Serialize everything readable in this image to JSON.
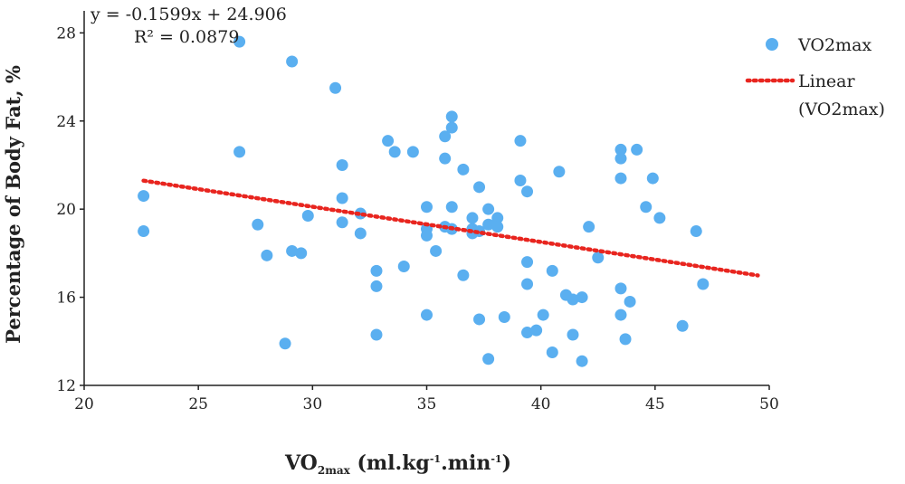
{
  "chart_data": {
    "type": "scatter",
    "title": "",
    "ylabel": "Percentage of Body Fat, %",
    "xlabel": {
      "main": "VO",
      "sub": "2max",
      "units_open": " (ml.kg",
      "sup1": "-1",
      "mid": ".min",
      "sup2": "-1",
      "units_close": ")"
    },
    "xlim": [
      20,
      50
    ],
    "ylim": [
      12,
      29
    ],
    "xticks": [
      20,
      25,
      30,
      35,
      40,
      45,
      50
    ],
    "yticks": [
      12,
      16,
      20,
      24,
      28
    ],
    "grid": false,
    "legend_position": "top-right",
    "equation": "y = -0.1599x + 24.906",
    "r_squared": "R² = 0.0879",
    "colors": {
      "points": "#5aaff0",
      "trendline": "#e8251f"
    },
    "series": [
      {
        "name": "VO2max",
        "points": [
          [
            22.6,
            20.6
          ],
          [
            22.6,
            19.0
          ],
          [
            26.8,
            27.6
          ],
          [
            26.8,
            22.6
          ],
          [
            27.6,
            19.3
          ],
          [
            28.0,
            17.9
          ],
          [
            28.8,
            13.9
          ],
          [
            29.1,
            26.7
          ],
          [
            29.1,
            18.1
          ],
          [
            29.5,
            18.0
          ],
          [
            29.8,
            19.7
          ],
          [
            31.0,
            25.5
          ],
          [
            31.3,
            22.0
          ],
          [
            31.3,
            20.5
          ],
          [
            31.3,
            19.4
          ],
          [
            32.1,
            19.8
          ],
          [
            32.1,
            18.9
          ],
          [
            32.8,
            17.2
          ],
          [
            32.8,
            16.5
          ],
          [
            32.8,
            14.3
          ],
          [
            33.3,
            23.1
          ],
          [
            33.6,
            22.6
          ],
          [
            34.0,
            17.4
          ],
          [
            34.4,
            22.6
          ],
          [
            35.0,
            20.1
          ],
          [
            35.0,
            19.1
          ],
          [
            35.0,
            18.8
          ],
          [
            35.0,
            15.2
          ],
          [
            35.4,
            18.1
          ],
          [
            35.8,
            23.3
          ],
          [
            35.8,
            22.3
          ],
          [
            35.8,
            19.2
          ],
          [
            36.1,
            24.2
          ],
          [
            36.1,
            23.7
          ],
          [
            36.1,
            20.1
          ],
          [
            36.1,
            19.1
          ],
          [
            36.6,
            21.8
          ],
          [
            36.6,
            17.0
          ],
          [
            37.0,
            19.6
          ],
          [
            37.0,
            19.1
          ],
          [
            37.0,
            18.9
          ],
          [
            37.3,
            21.0
          ],
          [
            37.3,
            19.0
          ],
          [
            37.3,
            15.0
          ],
          [
            37.7,
            20.0
          ],
          [
            37.7,
            19.3
          ],
          [
            37.7,
            13.2
          ],
          [
            38.1,
            19.6
          ],
          [
            38.1,
            19.2
          ],
          [
            38.4,
            15.1
          ],
          [
            39.1,
            23.1
          ],
          [
            39.1,
            21.3
          ],
          [
            39.4,
            20.8
          ],
          [
            39.4,
            17.6
          ],
          [
            39.4,
            16.6
          ],
          [
            39.4,
            14.4
          ],
          [
            39.8,
            14.5
          ],
          [
            40.1,
            15.2
          ],
          [
            40.5,
            17.2
          ],
          [
            40.5,
            13.5
          ],
          [
            40.8,
            21.7
          ],
          [
            41.1,
            16.1
          ],
          [
            41.4,
            15.9
          ],
          [
            41.4,
            14.3
          ],
          [
            41.8,
            16.0
          ],
          [
            41.8,
            13.1
          ],
          [
            42.1,
            19.2
          ],
          [
            42.5,
            17.8
          ],
          [
            43.5,
            22.7
          ],
          [
            43.5,
            22.3
          ],
          [
            43.5,
            21.4
          ],
          [
            43.5,
            16.4
          ],
          [
            43.5,
            15.2
          ],
          [
            43.7,
            14.1
          ],
          [
            43.9,
            15.8
          ],
          [
            44.2,
            22.7
          ],
          [
            44.6,
            20.1
          ],
          [
            44.9,
            21.4
          ],
          [
            45.2,
            19.6
          ],
          [
            46.2,
            14.7
          ],
          [
            46.8,
            19.0
          ],
          [
            47.1,
            16.6
          ]
        ]
      },
      {
        "name": "Linear (VO2max)",
        "legend_lines": [
          "Linear",
          "(VO2max)"
        ],
        "slope": -0.1599,
        "intercept": 24.906,
        "x_range": [
          22.6,
          49.5
        ]
      }
    ]
  }
}
